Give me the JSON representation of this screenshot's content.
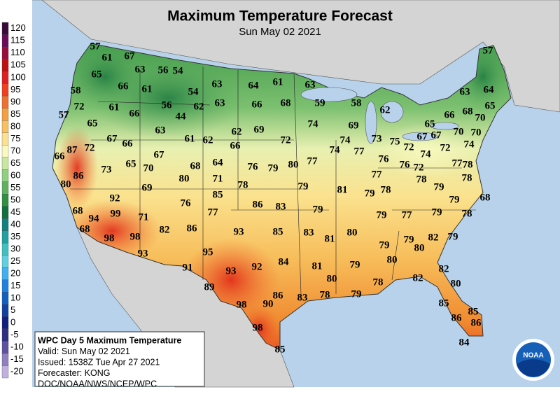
{
  "header": {
    "title": "Maximum Temperature Forecast",
    "subtitle": "Sun May 02 2021"
  },
  "legend": {
    "labels": [
      "120",
      "115",
      "110",
      "105",
      "100",
      "95",
      "90",
      "85",
      "80",
      "75",
      "70",
      "65",
      "60",
      "55",
      "50",
      "45",
      "40",
      "35",
      "30",
      "25",
      "20",
      "15",
      "10",
      "5",
      "0",
      "-5",
      "-10",
      "-15",
      "-20"
    ],
    "colors": [
      "#3a0a3a",
      "#6a0a5a",
      "#9a0a3a",
      "#c01010",
      "#e02020",
      "#f04020",
      "#f07030",
      "#f5a040",
      "#f8c060",
      "#fae090",
      "#fafac0",
      "#c8e8a0",
      "#90d080",
      "#60b060",
      "#309040",
      "#107040",
      "#108080",
      "#20a0a0",
      "#40c0c0",
      "#60d0e0",
      "#40b0f0",
      "#2080e0",
      "#1060c0",
      "#1040a0",
      "#102080",
      "#303080",
      "#6050a0",
      "#9080c0",
      "#c0b0e0"
    ]
  },
  "info": {
    "lines": [
      "WPC Day 5 Maximum Temperature",
      "Valid: Sun May 02 2021",
      "Issued: 1538Z Tue Apr 27 2021",
      "Forecaster: KONG",
      "DOC/NOAA/NWS/NCEP/WPC"
    ]
  },
  "logo": "NOAA",
  "temperatures": [
    "57",
    "61",
    "67",
    "63",
    "56",
    "54",
    "65",
    "58",
    "66",
    "61",
    "54",
    "63",
    "64",
    "61",
    "63",
    "72",
    "57",
    "61",
    "66",
    "56",
    "62",
    "63",
    "66",
    "68",
    "59",
    "58",
    "62",
    "65",
    "44",
    "63",
    "61",
    "62",
    "62",
    "69",
    "74",
    "69",
    "65",
    "66",
    "68",
    "70",
    "65",
    "63",
    "64",
    "57",
    "87",
    "66",
    "72",
    "67",
    "66",
    "67",
    "65",
    "70",
    "73",
    "66",
    "72",
    "74",
    "74",
    "77",
    "73",
    "75",
    "72",
    "67",
    "67",
    "70",
    "70",
    "74",
    "74",
    "72",
    "76",
    "76",
    "72",
    "86",
    "80",
    "80",
    "68",
    "64",
    "71",
    "76",
    "79",
    "80",
    "77",
    "77",
    "78",
    "78",
    "78",
    "79",
    "77",
    "78",
    "79",
    "81",
    "79",
    "78",
    "69",
    "92",
    "85",
    "76",
    "77",
    "86",
    "83",
    "79",
    "68",
    "99",
    "94",
    "68",
    "71",
    "98",
    "98",
    "82",
    "86",
    "93",
    "85",
    "83",
    "81",
    "80",
    "79",
    "77",
    "79",
    "79",
    "78",
    "68",
    "79",
    "79",
    "80",
    "82",
    "79",
    "93",
    "95",
    "91",
    "93",
    "92",
    "84",
    "81",
    "79",
    "80",
    "82",
    "82",
    "78",
    "80",
    "89",
    "80",
    "98",
    "90",
    "86",
    "83",
    "78",
    "79",
    "85",
    "85",
    "86",
    "86",
    "98",
    "85",
    "84"
  ]
}
